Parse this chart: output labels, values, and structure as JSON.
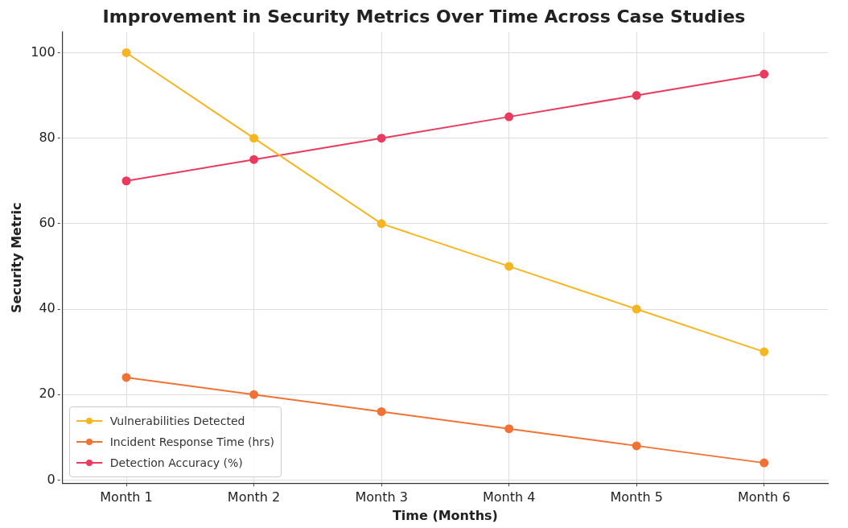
{
  "chart_data": {
    "type": "line",
    "title": "Improvement in Security Metrics Over Time Across Case Studies",
    "xlabel": "Time (Months)",
    "ylabel": "Security Metric",
    "categories": [
      "Month 1",
      "Month 2",
      "Month 3",
      "Month 4",
      "Month 5",
      "Month 6"
    ],
    "series": [
      {
        "name": "Vulnerabilities Detected",
        "color": "#f5b622",
        "values": [
          100,
          80,
          60,
          50,
          40,
          30
        ]
      },
      {
        "name": "Incident Response Time (hrs)",
        "color": "#f07234",
        "values": [
          24,
          20,
          16,
          12,
          8,
          4
        ]
      },
      {
        "name": "Detection Accuracy (%)",
        "color": "#ea3a5e",
        "values": [
          70,
          75,
          80,
          85,
          90,
          95
        ]
      }
    ],
    "ylim": [
      -0.8,
      104.8
    ],
    "yticks": [
      0,
      20,
      40,
      60,
      80,
      100
    ],
    "grid": true,
    "legend": "bottom left",
    "marker": "circle",
    "line_style": "solid"
  }
}
